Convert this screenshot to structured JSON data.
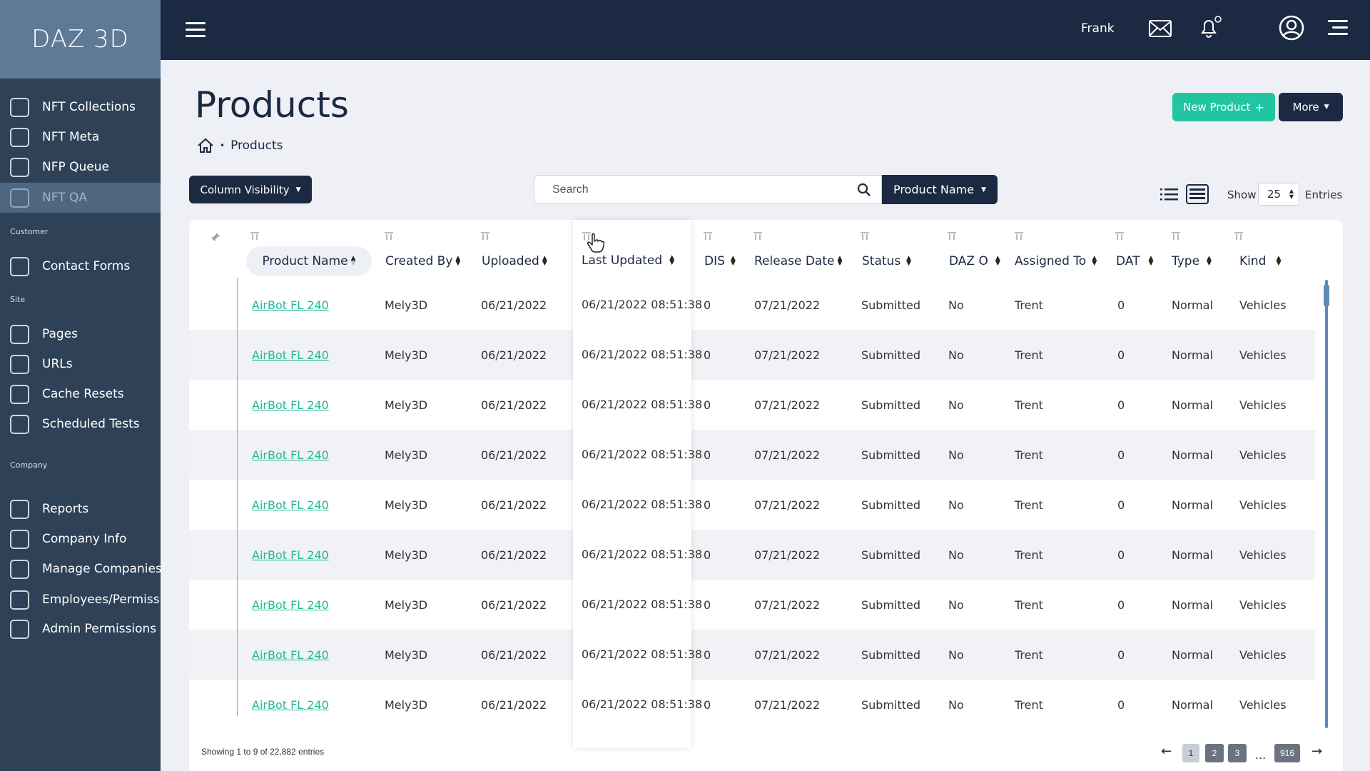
{
  "brand": "DAZ 3D",
  "sidebar": {
    "items": [
      {
        "label": "NFT Collections"
      },
      {
        "label": "NFT Meta"
      },
      {
        "label": "NFP Queue"
      },
      {
        "label": "NFT QA"
      },
      {
        "label": "Contact Forms"
      },
      {
        "label": "Pages"
      },
      {
        "label": "URLs"
      },
      {
        "label": "Cache Resets"
      },
      {
        "label": "Scheduled Tests"
      },
      {
        "label": "Reports"
      },
      {
        "label": "Company Info"
      },
      {
        "label": "Manage Companies"
      },
      {
        "label": "Employees/Permissions"
      },
      {
        "label": "Admin Permissions"
      }
    ],
    "active": "NFT QA",
    "sections": [
      "Customer",
      "Site",
      "Company"
    ]
  },
  "topbar": {
    "user_name": "Frank",
    "icons": [
      "menu-icon",
      "mail-icon",
      "bell-icon",
      "user-icon",
      "more-menu-icon"
    ]
  },
  "page": {
    "title": "Products",
    "breadcrumb_sep": "•",
    "breadcrumb": "Products"
  },
  "buttons": {
    "new_product": "New Product",
    "new_product_icon": "+",
    "more": "More",
    "column_visibility": "Column Visibility",
    "product_name_filter": "Product Name"
  },
  "search": {
    "placeholder": "Search"
  },
  "show": {
    "label": "Show",
    "value": "25",
    "suffix": "Entries"
  },
  "table": {
    "columns": [
      "Product Name",
      "Created By",
      "Uploaded",
      "Last Updated",
      "DIS",
      "Release Date",
      "Status",
      "DAZ O",
      "Assigned To",
      "DAT",
      "Type",
      "Kind"
    ],
    "rows": [
      [
        "AirBot FL 240",
        "Mely3D",
        "06/21/2022",
        "06/21/2022 08:51:38",
        "0",
        "07/21/2022",
        "Submitted",
        "No",
        "Trent",
        "0",
        "Normal",
        "Vehicles"
      ],
      [
        "AirBot FL 240",
        "Mely3D",
        "06/21/2022",
        "06/21/2022 08:51:38",
        "0",
        "07/21/2022",
        "Submitted",
        "No",
        "Trent",
        "0",
        "Normal",
        "Vehicles"
      ],
      [
        "AirBot FL 240",
        "Mely3D",
        "06/21/2022",
        "06/21/2022 08:51:38",
        "0",
        "07/21/2022",
        "Submitted",
        "No",
        "Trent",
        "0",
        "Normal",
        "Vehicles"
      ],
      [
        "AirBot FL 240",
        "Mely3D",
        "06/21/2022",
        "06/21/2022 08:51:38",
        "0",
        "07/21/2022",
        "Submitted",
        "No",
        "Trent",
        "0",
        "Normal",
        "Vehicles"
      ],
      [
        "AirBot FL 240",
        "Mely3D",
        "06/21/2022",
        "06/21/2022 08:51:38",
        "0",
        "07/21/2022",
        "Submitted",
        "No",
        "Trent",
        "0",
        "Normal",
        "Vehicles"
      ],
      [
        "AirBot FL 240",
        "Mely3D",
        "06/21/2022",
        "06/21/2022 08:51:38",
        "0",
        "07/21/2022",
        "Submitted",
        "No",
        "Trent",
        "0",
        "Normal",
        "Vehicles"
      ],
      [
        "AirBot FL 240",
        "Mely3D",
        "06/21/2022",
        "06/21/2022 08:51:38",
        "0",
        "07/21/2022",
        "Submitted",
        "No",
        "Trent",
        "0",
        "Normal",
        "Vehicles"
      ],
      [
        "AirBot FL 240",
        "Mely3D",
        "06/21/2022",
        "06/21/2022 08:51:38",
        "0",
        "07/21/2022",
        "Submitted",
        "No",
        "Trent",
        "0",
        "Normal",
        "Vehicles"
      ],
      [
        "AirBot FL 240",
        "Mely3D",
        "06/21/2022",
        "06/21/2022 08:51:38",
        "0",
        "07/21/2022",
        "Submitted",
        "No",
        "Trent",
        "0",
        "Normal",
        "Vehicles"
      ]
    ]
  },
  "footer": {
    "info": "Showing 1 to 9 of 22,882 entries",
    "pages": [
      "1",
      "2",
      "3",
      "916"
    ],
    "current_page": "1",
    "ellipsis": "...",
    "prev": "←",
    "next": "→"
  },
  "colors": {
    "sidebar_bg": "#2e4157",
    "topbar_bg": "#1c2942",
    "accent": "#22c5a2",
    "link": "#22b896"
  }
}
